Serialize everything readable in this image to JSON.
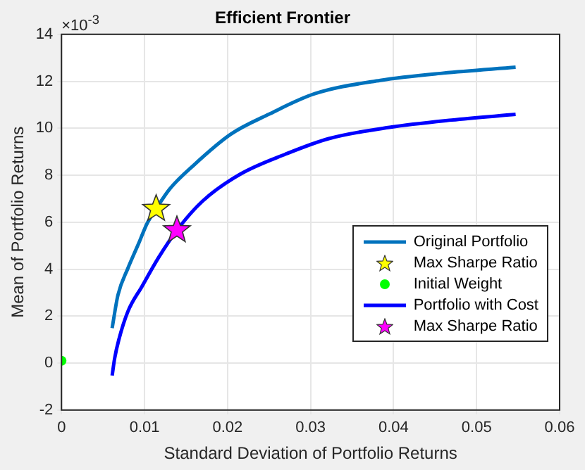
{
  "chart_data": {
    "type": "line",
    "title": "Efficient Frontier",
    "xlabel": "Standard Deviation of Portfolio Returns",
    "ylabel": "Mean of Portfolio Returns",
    "annotations": [
      "×10$^{-3}$"
    ],
    "xlim": [
      0,
      0.06
    ],
    "xticks": [
      0,
      0.01,
      0.02,
      0.03,
      0.04,
      0.05,
      0.06
    ],
    "ylim": [
      -2,
      14
    ],
    "yticks": [
      -2,
      0,
      2,
      4,
      6,
      8,
      10,
      12,
      14
    ],
    "grid": true,
    "legend": "bottom right",
    "series": [
      {
        "name": "Original Portfolio",
        "type": "line",
        "color": "#0072bd",
        "x": [
          0.0061,
          0.0068,
          0.008,
          0.0093,
          0.0103,
          0.0114,
          0.013,
          0.0159,
          0.0204,
          0.025,
          0.0305,
          0.0384,
          0.046,
          0.0547
        ],
        "values": [
          1.49,
          2.9,
          4.04,
          5.1,
          5.94,
          6.57,
          7.4,
          8.42,
          9.75,
          10.6,
          11.47,
          12.04,
          12.35,
          12.6
        ]
      },
      {
        "name": "Max Sharpe Ratio",
        "type": "scatter",
        "marker": "star",
        "color": "#ffff00",
        "x": [
          0.0114
        ],
        "values": [
          6.57
        ]
      },
      {
        "name": "Initial Weight",
        "type": "scatter",
        "marker": "circle",
        "color": "#00ff00",
        "x": [
          0
        ],
        "values": [
          0.1
        ]
      },
      {
        "name": "Portfolio with Cost",
        "type": "line",
        "color": "#0000ff",
        "x": [
          0.0061,
          0.0064,
          0.0069,
          0.008,
          0.0097,
          0.0117,
          0.0139,
          0.017,
          0.0215,
          0.027,
          0.0322,
          0.0395,
          0.047,
          0.0547
        ],
        "values": [
          -0.53,
          0.2,
          0.99,
          2.2,
          3.27,
          4.5,
          5.66,
          6.9,
          8.04,
          8.9,
          9.56,
          10.04,
          10.35,
          10.59
        ]
      },
      {
        "name": "Max Sharpe Ratio",
        "type": "scatter",
        "marker": "star",
        "color": "#ff00ff",
        "x": [
          0.0139
        ],
        "values": [
          5.66
        ]
      }
    ]
  }
}
